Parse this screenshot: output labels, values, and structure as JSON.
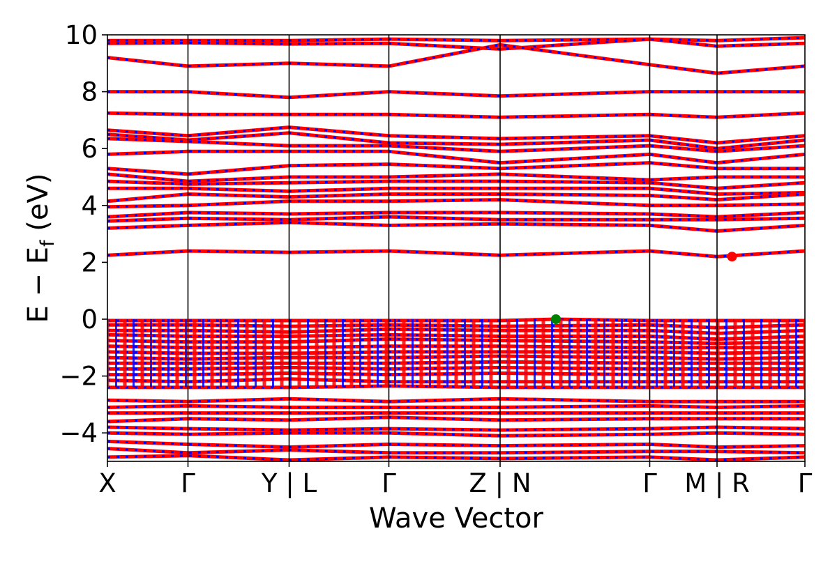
{
  "chart_data": {
    "type": "line",
    "xlabel": "Wave Vector",
    "ylabel_main": "E − E",
    "ylabel_sub": "f",
    "ylabel_unit": " (eV)",
    "ylim": [
      -5,
      10
    ],
    "yticks": [
      {
        "value": 10,
        "label": "10"
      },
      {
        "value": 8,
        "label": "8"
      },
      {
        "value": 6,
        "label": "6"
      },
      {
        "value": 4,
        "label": "4"
      },
      {
        "value": 2,
        "label": "2"
      },
      {
        "value": 0,
        "label": "0"
      },
      {
        "value": -2,
        "label": "−2"
      },
      {
        "value": -4,
        "label": "−4"
      }
    ],
    "xlim": [
      0,
      1
    ],
    "kpoints": [
      {
        "x": 0.0,
        "label": "X"
      },
      {
        "x": 0.1155,
        "label": "Γ"
      },
      {
        "x": 0.2605,
        "label": "Y | L"
      },
      {
        "x": 0.4035,
        "label": "Γ"
      },
      {
        "x": 0.563,
        "label": "Z | N"
      },
      {
        "x": 0.7775,
        "label": "Γ"
      },
      {
        "x": 0.874,
        "label": "M | R"
      },
      {
        "x": 1.0,
        "label": "Γ"
      }
    ],
    "grid": false,
    "series_colors": {
      "spin_up": "#ff0000",
      "spin_down": "#0000ff"
    },
    "markers": [
      {
        "name": "valence-band-maximum",
        "x": 0.643,
        "y": 0.0,
        "color": "#008000"
      },
      {
        "name": "conduction-band-minimum",
        "x": 0.8955,
        "y": 2.2,
        "color": "#ff0000"
      }
    ],
    "bands": [
      [
        [
          0,
          9.8
        ],
        [
          0.1155,
          9.8
        ],
        [
          0.2605,
          9.8
        ],
        [
          0.4035,
          9.85
        ],
        [
          0.563,
          9.8
        ],
        [
          0.7775,
          9.85
        ],
        [
          0.874,
          9.8
        ],
        [
          1,
          9.9
        ]
      ],
      [
        [
          0,
          9.7
        ],
        [
          0.1155,
          9.72
        ],
        [
          0.2605,
          9.68
        ],
        [
          0.4035,
          9.7
        ],
        [
          0.563,
          9.5
        ],
        [
          0.7775,
          9.85
        ],
        [
          0.874,
          9.6
        ],
        [
          1,
          9.7
        ]
      ],
      [
        [
          0,
          9.2
        ],
        [
          0.1155,
          8.9
        ],
        [
          0.2605,
          9.0
        ],
        [
          0.4035,
          8.9
        ],
        [
          0.563,
          9.65
        ],
        [
          0.7775,
          8.95
        ],
        [
          0.874,
          8.65
        ],
        [
          1,
          8.9
        ]
      ],
      [
        [
          0,
          8.0
        ],
        [
          0.1155,
          8.0
        ],
        [
          0.2605,
          7.8
        ],
        [
          0.4035,
          8.0
        ],
        [
          0.563,
          7.85
        ],
        [
          0.7775,
          8.0
        ],
        [
          0.874,
          8.0
        ],
        [
          1,
          8.0
        ]
      ],
      [
        [
          0,
          7.25
        ],
        [
          0.1155,
          7.2
        ],
        [
          0.2605,
          7.2
        ],
        [
          0.4035,
          7.2
        ],
        [
          0.563,
          7.1
        ],
        [
          0.7775,
          7.2
        ],
        [
          0.874,
          7.1
        ],
        [
          1,
          7.25
        ]
      ],
      [
        [
          0,
          6.65
        ],
        [
          0.1155,
          6.45
        ],
        [
          0.2605,
          6.75
        ],
        [
          0.4035,
          6.45
        ],
        [
          0.563,
          6.35
        ],
        [
          0.7775,
          6.45
        ],
        [
          0.874,
          6.2
        ],
        [
          1,
          6.45
        ]
      ],
      [
        [
          0,
          6.5
        ],
        [
          0.1155,
          6.3
        ],
        [
          0.2605,
          6.55
        ],
        [
          0.4035,
          6.2
        ],
        [
          0.563,
          6.15
        ],
        [
          0.7775,
          6.3
        ],
        [
          0.874,
          6.0
        ],
        [
          1,
          6.3
        ]
      ],
      [
        [
          0,
          6.35
        ],
        [
          0.1155,
          6.25
        ],
        [
          0.2605,
          6.1
        ],
        [
          0.4035,
          6.1
        ],
        [
          0.563,
          5.9
        ],
        [
          0.7775,
          6.1
        ],
        [
          0.874,
          5.9
        ],
        [
          1,
          6.1
        ]
      ],
      [
        [
          0,
          5.8
        ],
        [
          0.1155,
          5.9
        ],
        [
          0.2605,
          5.9
        ],
        [
          0.4035,
          5.9
        ],
        [
          0.563,
          5.5
        ],
        [
          0.7775,
          5.8
        ],
        [
          0.874,
          5.5
        ],
        [
          1,
          5.8
        ]
      ],
      [
        [
          0,
          5.3
        ],
        [
          0.1155,
          5.1
        ],
        [
          0.2605,
          5.4
        ],
        [
          0.4035,
          5.45
        ],
        [
          0.563,
          5.3
        ],
        [
          0.7775,
          5.5
        ],
        [
          0.874,
          5.3
        ],
        [
          1,
          5.3
        ]
      ],
      [
        [
          0,
          5.1
        ],
        [
          0.1155,
          4.85
        ],
        [
          0.2605,
          5.0
        ],
        [
          0.4035,
          5.0
        ],
        [
          0.563,
          5.1
        ],
        [
          0.7775,
          4.9
        ],
        [
          0.874,
          5.0
        ],
        [
          1,
          5.0
        ]
      ],
      [
        [
          0,
          4.85
        ],
        [
          0.1155,
          4.75
        ],
        [
          0.2605,
          4.8
        ],
        [
          0.4035,
          4.85
        ],
        [
          0.563,
          4.85
        ],
        [
          0.7775,
          4.8
        ],
        [
          0.874,
          4.6
        ],
        [
          1,
          4.8
        ]
      ],
      [
        [
          0,
          4.6
        ],
        [
          0.1155,
          4.6
        ],
        [
          0.2605,
          4.5
        ],
        [
          0.4035,
          4.6
        ],
        [
          0.563,
          4.6
        ],
        [
          0.7775,
          4.6
        ],
        [
          0.874,
          4.4
        ],
        [
          1,
          4.45
        ]
      ],
      [
        [
          0,
          4.15
        ],
        [
          0.1155,
          4.4
        ],
        [
          0.2605,
          4.3
        ],
        [
          0.4035,
          4.4
        ],
        [
          0.563,
          4.4
        ],
        [
          0.7775,
          4.35
        ],
        [
          0.874,
          4.2
        ],
        [
          1,
          4.4
        ]
      ],
      [
        [
          0,
          3.95
        ],
        [
          0.1155,
          4.0
        ],
        [
          0.2605,
          4.15
        ],
        [
          0.4035,
          4.15
        ],
        [
          0.563,
          4.2
        ],
        [
          0.7775,
          4.0
        ],
        [
          0.874,
          4.0
        ],
        [
          1,
          4.05
        ]
      ],
      [
        [
          0,
          3.6
        ],
        [
          0.1155,
          3.75
        ],
        [
          0.2605,
          3.7
        ],
        [
          0.4035,
          3.75
        ],
        [
          0.563,
          3.75
        ],
        [
          0.7775,
          3.7
        ],
        [
          0.874,
          3.6
        ],
        [
          1,
          3.75
        ]
      ],
      [
        [
          0,
          3.45
        ],
        [
          0.1155,
          3.55
        ],
        [
          0.2605,
          3.5
        ],
        [
          0.4035,
          3.6
        ],
        [
          0.563,
          3.5
        ],
        [
          0.7775,
          3.5
        ],
        [
          0.874,
          3.5
        ],
        [
          1,
          3.55
        ]
      ],
      [
        [
          0,
          3.2
        ],
        [
          0.1155,
          3.3
        ],
        [
          0.2605,
          3.4
        ],
        [
          0.4035,
          3.3
        ],
        [
          0.563,
          3.35
        ],
        [
          0.7775,
          3.3
        ],
        [
          0.874,
          3.1
        ],
        [
          1,
          3.3
        ]
      ],
      [
        [
          0,
          2.25
        ],
        [
          0.1155,
          2.4
        ],
        [
          0.2605,
          2.35
        ],
        [
          0.4035,
          2.4
        ],
        [
          0.563,
          2.25
        ],
        [
          0.7775,
          2.4
        ],
        [
          0.874,
          2.2
        ],
        [
          1,
          2.4
        ]
      ],
      [
        [
          0,
          -0.05
        ],
        [
          0.1155,
          -0.05
        ],
        [
          0.2605,
          -0.05
        ],
        [
          0.4035,
          -0.05
        ],
        [
          0.563,
          -0.05
        ],
        [
          0.643,
          0.0
        ],
        [
          0.7775,
          -0.05
        ],
        [
          0.874,
          -0.05
        ],
        [
          1,
          -0.05
        ]
      ],
      [
        [
          0,
          -0.2
        ],
        [
          0.1155,
          -0.2
        ],
        [
          0.2605,
          -0.25
        ],
        [
          0.4035,
          -0.2
        ],
        [
          0.563,
          -0.25
        ],
        [
          0.7775,
          -0.2
        ],
        [
          0.874,
          -0.3
        ],
        [
          1,
          -0.2
        ]
      ],
      [
        [
          0,
          -0.4
        ],
        [
          0.1155,
          -0.4
        ],
        [
          0.2605,
          -0.45
        ],
        [
          0.4035,
          -0.35
        ],
        [
          0.563,
          -0.4
        ],
        [
          0.7775,
          -0.4
        ],
        [
          0.874,
          -0.5
        ],
        [
          1,
          -0.4
        ]
      ],
      [
        [
          0,
          -0.55
        ],
        [
          0.1155,
          -0.6
        ],
        [
          0.2605,
          -0.6
        ],
        [
          0.4035,
          -0.55
        ],
        [
          0.563,
          -0.6
        ],
        [
          0.7775,
          -0.6
        ],
        [
          0.874,
          -0.7
        ],
        [
          1,
          -0.6
        ]
      ],
      [
        [
          0,
          -0.75
        ],
        [
          0.1155,
          -0.8
        ],
        [
          0.2605,
          -0.8
        ],
        [
          0.4035,
          -0.7
        ],
        [
          0.563,
          -0.75
        ],
        [
          0.7775,
          -0.8
        ],
        [
          0.874,
          -0.85
        ],
        [
          1,
          -0.8
        ]
      ],
      [
        [
          0,
          -0.95
        ],
        [
          0.1155,
          -1.0
        ],
        [
          0.2605,
          -1.0
        ],
        [
          0.4035,
          -0.95
        ],
        [
          0.563,
          -0.95
        ],
        [
          0.7775,
          -1.0
        ],
        [
          0.874,
          -1.0
        ],
        [
          1,
          -1.0
        ]
      ],
      [
        [
          0,
          -1.15
        ],
        [
          0.1155,
          -1.2
        ],
        [
          0.2605,
          -1.2
        ],
        [
          0.4035,
          -1.15
        ],
        [
          0.563,
          -1.15
        ],
        [
          0.7775,
          -1.15
        ],
        [
          0.874,
          -1.2
        ],
        [
          1,
          -1.15
        ]
      ],
      [
        [
          0,
          -1.35
        ],
        [
          0.1155,
          -1.4
        ],
        [
          0.2605,
          -1.35
        ],
        [
          0.4035,
          -1.35
        ],
        [
          0.563,
          -1.3
        ],
        [
          0.7775,
          -1.35
        ],
        [
          0.874,
          -1.4
        ],
        [
          1,
          -1.35
        ]
      ],
      [
        [
          0,
          -1.55
        ],
        [
          0.1155,
          -1.55
        ],
        [
          0.2605,
          -1.55
        ],
        [
          0.4035,
          -1.55
        ],
        [
          0.563,
          -1.5
        ],
        [
          0.7775,
          -1.55
        ],
        [
          0.874,
          -1.55
        ],
        [
          1,
          -1.55
        ]
      ],
      [
        [
          0,
          -1.75
        ],
        [
          0.1155,
          -1.75
        ],
        [
          0.2605,
          -1.7
        ],
        [
          0.4035,
          -1.75
        ],
        [
          0.563,
          -1.7
        ],
        [
          0.7775,
          -1.75
        ],
        [
          0.874,
          -1.75
        ],
        [
          1,
          -1.75
        ]
      ],
      [
        [
          0,
          -1.95
        ],
        [
          0.1155,
          -1.95
        ],
        [
          0.2605,
          -1.9
        ],
        [
          0.4035,
          -1.95
        ],
        [
          0.563,
          -1.9
        ],
        [
          0.7775,
          -1.95
        ],
        [
          0.874,
          -1.95
        ],
        [
          1,
          -1.95
        ]
      ],
      [
        [
          0,
          -2.15
        ],
        [
          0.1155,
          -2.2
        ],
        [
          0.2605,
          -2.1
        ],
        [
          0.4035,
          -2.2
        ],
        [
          0.563,
          -2.2
        ],
        [
          0.7775,
          -2.2
        ],
        [
          0.874,
          -2.2
        ],
        [
          1,
          -2.2
        ]
      ],
      [
        [
          0,
          -2.4
        ],
        [
          0.1155,
          -2.4
        ],
        [
          0.2605,
          -2.4
        ],
        [
          0.4035,
          -2.35
        ],
        [
          0.563,
          -2.4
        ],
        [
          0.7775,
          -2.4
        ],
        [
          0.874,
          -2.4
        ],
        [
          1,
          -2.4
        ]
      ],
      [
        [
          0,
          -2.85
        ],
        [
          0.1155,
          -2.9
        ],
        [
          0.2605,
          -2.8
        ],
        [
          0.4035,
          -2.9
        ],
        [
          0.563,
          -2.8
        ],
        [
          0.7775,
          -2.9
        ],
        [
          0.874,
          -2.9
        ],
        [
          1,
          -2.9
        ]
      ],
      [
        [
          0,
          -3.1
        ],
        [
          0.1155,
          -3.05
        ],
        [
          0.2605,
          -3.1
        ],
        [
          0.4035,
          -3.1
        ],
        [
          0.563,
          -3.1
        ],
        [
          0.7775,
          -3.05
        ],
        [
          0.874,
          -3.1
        ],
        [
          1,
          -3.05
        ]
      ],
      [
        [
          0,
          -3.3
        ],
        [
          0.1155,
          -3.3
        ],
        [
          0.2605,
          -3.3
        ],
        [
          0.4035,
          -3.3
        ],
        [
          0.563,
          -3.3
        ],
        [
          0.7775,
          -3.3
        ],
        [
          0.874,
          -3.3
        ],
        [
          1,
          -3.3
        ]
      ],
      [
        [
          0,
          -3.6
        ],
        [
          0.1155,
          -3.5
        ],
        [
          0.2605,
          -3.55
        ],
        [
          0.4035,
          -3.45
        ],
        [
          0.563,
          -3.55
        ],
        [
          0.7775,
          -3.5
        ],
        [
          0.874,
          -3.5
        ],
        [
          1,
          -3.5
        ]
      ],
      [
        [
          0,
          -3.8
        ],
        [
          0.1155,
          -3.85
        ],
        [
          0.2605,
          -3.9
        ],
        [
          0.4035,
          -3.85
        ],
        [
          0.563,
          -3.9
        ],
        [
          0.7775,
          -3.85
        ],
        [
          0.874,
          -3.8
        ],
        [
          1,
          -3.85
        ]
      ],
      [
        [
          0,
          -4.0
        ],
        [
          0.1155,
          -4.05
        ],
        [
          0.2605,
          -4.0
        ],
        [
          0.4035,
          -4.0
        ],
        [
          0.563,
          -4.1
        ],
        [
          0.7775,
          -4.05
        ],
        [
          0.874,
          -4.0
        ],
        [
          1,
          -4.05
        ]
      ],
      [
        [
          0,
          -4.3
        ],
        [
          0.1155,
          -4.4
        ],
        [
          0.2605,
          -4.5
        ],
        [
          0.4035,
          -4.4
        ],
        [
          0.563,
          -4.45
        ],
        [
          0.7775,
          -4.4
        ],
        [
          0.874,
          -4.5
        ],
        [
          1,
          -4.45
        ]
      ],
      [
        [
          0,
          -4.55
        ],
        [
          0.1155,
          -4.7
        ],
        [
          0.2605,
          -4.6
        ],
        [
          0.4035,
          -4.7
        ],
        [
          0.563,
          -4.7
        ],
        [
          0.7775,
          -4.65
        ],
        [
          0.874,
          -4.65
        ],
        [
          1,
          -4.7
        ]
      ],
      [
        [
          0,
          -4.85
        ],
        [
          0.1155,
          -4.8
        ],
        [
          0.2605,
          -4.95
        ],
        [
          0.4035,
          -4.85
        ],
        [
          0.563,
          -4.9
        ],
        [
          0.7775,
          -4.85
        ],
        [
          0.874,
          -4.95
        ],
        [
          1,
          -4.85
        ]
      ]
    ]
  }
}
